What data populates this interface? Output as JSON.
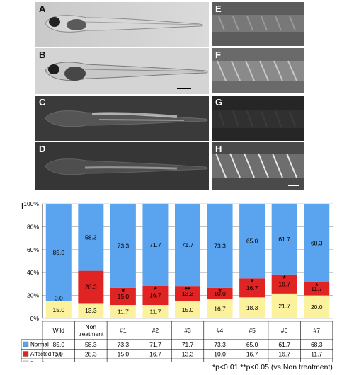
{
  "panels": {
    "left": [
      {
        "label": "A",
        "tone": "bright"
      },
      {
        "label": "B",
        "tone": "bright"
      },
      {
        "label": "C",
        "tone": "dark"
      },
      {
        "label": "D",
        "tone": "dark"
      }
    ],
    "right": [
      {
        "label": "E",
        "tone": "mid"
      },
      {
        "label": "F",
        "tone": "mid"
      },
      {
        "label": "G",
        "tone": "dark"
      },
      {
        "label": "H",
        "tone": "mid"
      }
    ]
  },
  "figure_label": "I",
  "footnote": "*p<0.01  **p<0.05 (vs Non treatment)",
  "chart_data": {
    "type": "bar",
    "stacked": true,
    "categories": [
      "Wild",
      "Non treatment",
      "#1",
      "#2",
      "#3",
      "#4",
      "#5",
      "#6",
      "#7"
    ],
    "category_lines": [
      [
        "Wild"
      ],
      [
        "Non",
        "treatment"
      ],
      [
        "#1"
      ],
      [
        "#2"
      ],
      [
        "#3"
      ],
      [
        "#4"
      ],
      [
        "#5"
      ],
      [
        "#6"
      ],
      [
        "#7"
      ]
    ],
    "series": [
      {
        "name": "Dead",
        "color": "#fcf29e",
        "values": [
          15.0,
          13.3,
          11.7,
          11.7,
          15.0,
          16.7,
          18.3,
          21.7,
          20.0
        ],
        "labels": [
          "15.0",
          "13.3",
          "11.7",
          "11.7",
          "15.0",
          "16.7",
          "18.3",
          "21.7",
          "20.0"
        ]
      },
      {
        "name": "Affected fish",
        "color": "#e02424",
        "values": [
          0.0,
          28.3,
          15.0,
          16.7,
          13.3,
          10.0,
          16.7,
          16.7,
          11.7
        ],
        "labels": [
          "0.0",
          "28.3",
          "15.0",
          "16.7",
          "13.3",
          "10.0",
          "16.7",
          "16.7",
          "11.7"
        ]
      },
      {
        "name": "Normal",
        "color": "#5aa3ee",
        "values": [
          85.0,
          58.3,
          73.3,
          71.7,
          71.7,
          73.3,
          65.0,
          61.7,
          68.3
        ],
        "labels": [
          "85.0",
          "58.3",
          "73.3",
          "71.7",
          "71.7",
          "73.3",
          "65.0",
          "61.7",
          "68.3"
        ]
      }
    ],
    "significance": [
      "",
      "",
      "*",
      "*",
      "**",
      "*",
      "*",
      "*",
      "*"
    ],
    "yticks": [
      "0%",
      "20%",
      "40%",
      "60%",
      "80%",
      "100%"
    ],
    "ylim": [
      0,
      100
    ],
    "grid": true,
    "legend": "table-left"
  }
}
